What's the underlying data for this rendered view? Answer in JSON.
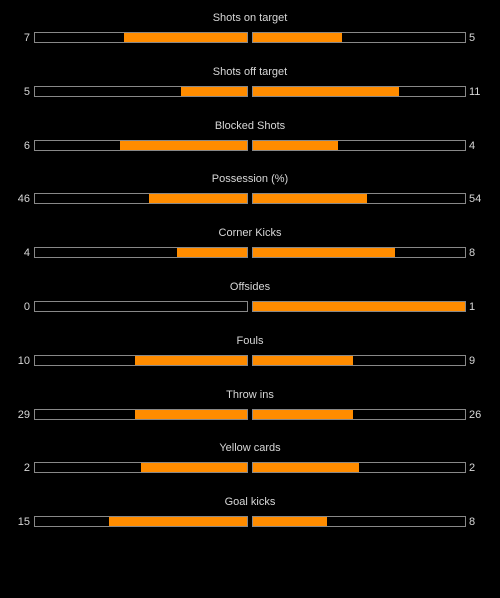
{
  "colors": {
    "background": "#000000",
    "bar_fill": "#ff8c00",
    "bar_border": "#888888",
    "text": "#d8d8d8"
  },
  "stats": [
    {
      "title": "Shots on target",
      "left": "7",
      "right": "5",
      "left_fill": 0.58,
      "right_fill": 0.42
    },
    {
      "title": "Shots off target",
      "left": "5",
      "right": "11",
      "left_fill": 0.31,
      "right_fill": 0.69
    },
    {
      "title": "Blocked Shots",
      "left": "6",
      "right": "4",
      "left_fill": 0.6,
      "right_fill": 0.4
    },
    {
      "title": "Possession (%)",
      "left": "46",
      "right": "54",
      "left_fill": 0.46,
      "right_fill": 0.54
    },
    {
      "title": "Corner Kicks",
      "left": "4",
      "right": "8",
      "left_fill": 0.33,
      "right_fill": 0.67
    },
    {
      "title": "Offsides",
      "left": "0",
      "right": "1",
      "left_fill": 0.0,
      "right_fill": 1.0
    },
    {
      "title": "Fouls",
      "left": "10",
      "right": "9",
      "left_fill": 0.53,
      "right_fill": 0.47
    },
    {
      "title": "Throw ins",
      "left": "29",
      "right": "26",
      "left_fill": 0.53,
      "right_fill": 0.47
    },
    {
      "title": "Yellow cards",
      "left": "2",
      "right": "2",
      "left_fill": 0.5,
      "right_fill": 0.5
    },
    {
      "title": "Goal kicks",
      "left": "15",
      "right": "8",
      "left_fill": 0.65,
      "right_fill": 0.35
    }
  ]
}
